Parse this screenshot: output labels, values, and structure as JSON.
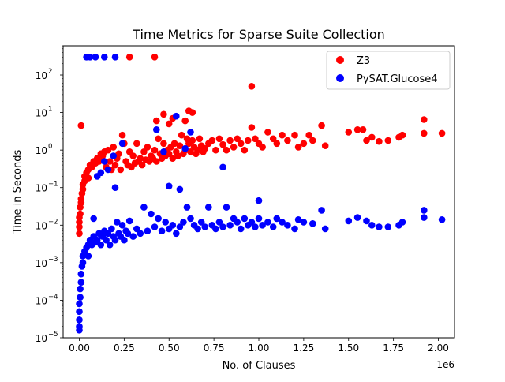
{
  "chart_data": {
    "type": "scatter",
    "title": "Time Metrics for Sparse Suite Collection",
    "xlabel": "No. of Clauses",
    "ylabel": "Time in Seconds",
    "x_offset_label": "1e6",
    "xscale": "linear",
    "yscale": "log",
    "xlim": [
      -0.09,
      2.09
    ],
    "ylim": [
      1e-05,
      600
    ],
    "x_unit_multiplier": 1000000,
    "x_ticks": [
      0.0,
      0.25,
      0.5,
      0.75,
      1.0,
      1.25,
      1.5,
      1.75,
      2.0
    ],
    "x_tick_labels": [
      "0.00",
      "0.25",
      "0.50",
      "0.75",
      "1.00",
      "1.25",
      "1.50",
      "1.75",
      "2.00"
    ],
    "y_ticks": [
      1e-05,
      0.0001,
      0.001,
      0.01,
      0.1,
      1,
      10,
      100
    ],
    "y_tick_labels": [
      "10",
      "10",
      "10",
      "10",
      "10",
      "10",
      "10",
      "10"
    ],
    "y_tick_exponents": [
      "−5",
      "−4",
      "−3",
      "−2",
      "−1",
      "0",
      "1",
      "2"
    ],
    "grid": false,
    "legend_position": "top-right",
    "series": [
      {
        "name": "Z3",
        "color": "#ff0000",
        "points": [
          [
            0.01,
            4.5
          ],
          [
            0.28,
            300
          ],
          [
            0.42,
            300
          ],
          [
            0.96,
            50
          ],
          [
            0.43,
            6
          ],
          [
            0.47,
            9
          ],
          [
            0.5,
            5
          ],
          [
            0.52,
            7
          ],
          [
            0.59,
            6
          ],
          [
            0.61,
            11
          ],
          [
            0.63,
            10
          ],
          [
            0.0,
            0.006
          ],
          [
            0.0,
            0.009
          ],
          [
            0.0,
            0.012
          ],
          [
            0.0,
            0.016
          ],
          [
            0.005,
            0.02
          ],
          [
            0.005,
            0.03
          ],
          [
            0.01,
            0.04
          ],
          [
            0.01,
            0.05
          ],
          [
            0.015,
            0.07
          ],
          [
            0.02,
            0.09
          ],
          [
            0.02,
            0.12
          ],
          [
            0.03,
            0.15
          ],
          [
            0.03,
            0.2
          ],
          [
            0.04,
            0.25
          ],
          [
            0.05,
            0.3
          ],
          [
            0.05,
            0.18
          ],
          [
            0.06,
            0.4
          ],
          [
            0.07,
            0.35
          ],
          [
            0.08,
            0.5
          ],
          [
            0.09,
            0.45
          ],
          [
            0.1,
            0.6
          ],
          [
            0.11,
            0.5
          ],
          [
            0.12,
            0.8
          ],
          [
            0.13,
            0.7
          ],
          [
            0.14,
            0.9
          ],
          [
            0.15,
            0.35
          ],
          [
            0.16,
            1.0
          ],
          [
            0.17,
            0.5
          ],
          [
            0.18,
            0.3
          ],
          [
            0.19,
            1.2
          ],
          [
            0.2,
            0.4
          ],
          [
            0.21,
            0.6
          ],
          [
            0.22,
            0.8
          ],
          [
            0.23,
            0.3
          ],
          [
            0.24,
            2.5
          ],
          [
            0.25,
            1.5
          ],
          [
            0.26,
            0.5
          ],
          [
            0.27,
            0.4
          ],
          [
            0.28,
            0.9
          ],
          [
            0.29,
            0.35
          ],
          [
            0.3,
            0.7
          ],
          [
            0.31,
            0.45
          ],
          [
            0.32,
            1.5
          ],
          [
            0.33,
            0.5
          ],
          [
            0.34,
            0.6
          ],
          [
            0.35,
            0.4
          ],
          [
            0.36,
            0.9
          ],
          [
            0.37,
            0.55
          ],
          [
            0.38,
            1.2
          ],
          [
            0.39,
            0.5
          ],
          [
            0.4,
            0.7
          ],
          [
            0.41,
            0.6
          ],
          [
            0.42,
            1.0
          ],
          [
            0.43,
            0.5
          ],
          [
            0.44,
            2.0
          ],
          [
            0.45,
            0.8
          ],
          [
            0.46,
            0.6
          ],
          [
            0.47,
            1.5
          ],
          [
            0.48,
            0.7
          ],
          [
            0.49,
            1.0
          ],
          [
            0.5,
            0.8
          ],
          [
            0.51,
            1.2
          ],
          [
            0.52,
            0.6
          ],
          [
            0.53,
            1.5
          ],
          [
            0.54,
            0.9
          ],
          [
            0.55,
            0.7
          ],
          [
            0.56,
            1.3
          ],
          [
            0.57,
            2.5
          ],
          [
            0.58,
            0.8
          ],
          [
            0.59,
            1.0
          ],
          [
            0.6,
            2.0
          ],
          [
            0.61,
            1.5
          ],
          [
            0.62,
            0.9
          ],
          [
            0.63,
            1.8
          ],
          [
            0.64,
            1.2
          ],
          [
            0.65,
            0.8
          ],
          [
            0.66,
            1.0
          ],
          [
            0.67,
            2.0
          ],
          [
            0.68,
            1.3
          ],
          [
            0.69,
            0.9
          ],
          [
            0.7,
            1.1
          ],
          [
            0.72,
            1.5
          ],
          [
            0.74,
            1.8
          ],
          [
            0.76,
            1.0
          ],
          [
            0.78,
            2.0
          ],
          [
            0.8,
            1.4
          ],
          [
            0.82,
            1.0
          ],
          [
            0.84,
            1.8
          ],
          [
            0.86,
            1.2
          ],
          [
            0.88,
            2.0
          ],
          [
            0.9,
            1.5
          ],
          [
            0.92,
            1.0
          ],
          [
            0.94,
            1.8
          ],
          [
            0.96,
            4.0
          ],
          [
            0.98,
            2.0
          ],
          [
            1.0,
            1.5
          ],
          [
            1.02,
            1.2
          ],
          [
            1.05,
            3.0
          ],
          [
            1.08,
            2.0
          ],
          [
            1.1,
            1.5
          ],
          [
            1.13,
            2.5
          ],
          [
            1.16,
            1.8
          ],
          [
            1.2,
            2.5
          ],
          [
            1.22,
            1.2
          ],
          [
            1.25,
            1.5
          ],
          [
            1.28,
            2.5
          ],
          [
            1.3,
            1.8
          ],
          [
            1.35,
            4.5
          ],
          [
            1.37,
            1.3
          ],
          [
            1.5,
            3.0
          ],
          [
            1.55,
            3.5
          ],
          [
            1.58,
            3.5
          ],
          [
            1.6,
            1.8
          ],
          [
            1.63,
            2.2
          ],
          [
            1.67,
            1.7
          ],
          [
            1.72,
            1.8
          ],
          [
            1.78,
            2.2
          ],
          [
            1.8,
            2.5
          ],
          [
            1.92,
            6.5
          ],
          [
            1.92,
            2.8
          ],
          [
            2.02,
            2.8
          ]
        ]
      },
      {
        "name": "PySAT.Glucose4",
        "color": "#0000ff",
        "points": [
          [
            0.04,
            300
          ],
          [
            0.06,
            300
          ],
          [
            0.09,
            300
          ],
          [
            0.14,
            300
          ],
          [
            0.2,
            300
          ],
          [
            0.43,
            3.5
          ],
          [
            0.54,
            8
          ],
          [
            0.62,
            3.0
          ],
          [
            0.59,
            1.1
          ],
          [
            0.47,
            0.9
          ],
          [
            0.24,
            1.5
          ],
          [
            0.19,
            0.7
          ],
          [
            0.14,
            0.5
          ],
          [
            0.16,
            0.3
          ],
          [
            0.12,
            0.25
          ],
          [
            0.1,
            0.2
          ],
          [
            0.2,
            0.1
          ],
          [
            0.5,
            0.11
          ],
          [
            0.8,
            0.35
          ],
          [
            0.56,
            0.09
          ],
          [
            1.0,
            0.045
          ],
          [
            0.0,
            1.6e-05
          ],
          [
            0.0,
            2e-05
          ],
          [
            0.0,
            3e-05
          ],
          [
            0.0,
            5e-05
          ],
          [
            0.0,
            8e-05
          ],
          [
            0.005,
            0.00012
          ],
          [
            0.005,
            0.0002
          ],
          [
            0.01,
            0.0003
          ],
          [
            0.01,
            0.0005
          ],
          [
            0.015,
            0.0008
          ],
          [
            0.02,
            0.001
          ],
          [
            0.02,
            0.0015
          ],
          [
            0.03,
            0.002
          ],
          [
            0.04,
            0.0025
          ],
          [
            0.05,
            0.003
          ],
          [
            0.05,
            0.0015
          ],
          [
            0.06,
            0.004
          ],
          [
            0.07,
            0.003
          ],
          [
            0.08,
            0.005
          ],
          [
            0.08,
            0.015
          ],
          [
            0.09,
            0.0035
          ],
          [
            0.1,
            0.004
          ],
          [
            0.11,
            0.006
          ],
          [
            0.12,
            0.003
          ],
          [
            0.13,
            0.005
          ],
          [
            0.14,
            0.007
          ],
          [
            0.15,
            0.004
          ],
          [
            0.16,
            0.006
          ],
          [
            0.17,
            0.003
          ],
          [
            0.18,
            0.008
          ],
          [
            0.19,
            0.005
          ],
          [
            0.2,
            0.004
          ],
          [
            0.21,
            0.012
          ],
          [
            0.22,
            0.006
          ],
          [
            0.23,
            0.005
          ],
          [
            0.24,
            0.01
          ],
          [
            0.25,
            0.004
          ],
          [
            0.26,
            0.007
          ],
          [
            0.27,
            0.006
          ],
          [
            0.28,
            0.013
          ],
          [
            0.3,
            0.005
          ],
          [
            0.32,
            0.008
          ],
          [
            0.34,
            0.006
          ],
          [
            0.36,
            0.03
          ],
          [
            0.38,
            0.007
          ],
          [
            0.4,
            0.02
          ],
          [
            0.42,
            0.009
          ],
          [
            0.44,
            0.015
          ],
          [
            0.46,
            0.007
          ],
          [
            0.48,
            0.012
          ],
          [
            0.5,
            0.008
          ],
          [
            0.52,
            0.01
          ],
          [
            0.54,
            0.006
          ],
          [
            0.56,
            0.009
          ],
          [
            0.58,
            0.012
          ],
          [
            0.6,
            0.03
          ],
          [
            0.62,
            0.015
          ],
          [
            0.64,
            0.01
          ],
          [
            0.66,
            0.008
          ],
          [
            0.68,
            0.012
          ],
          [
            0.7,
            0.009
          ],
          [
            0.72,
            0.03
          ],
          [
            0.74,
            0.01
          ],
          [
            0.76,
            0.008
          ],
          [
            0.78,
            0.012
          ],
          [
            0.8,
            0.009
          ],
          [
            0.82,
            0.03
          ],
          [
            0.84,
            0.01
          ],
          [
            0.86,
            0.015
          ],
          [
            0.88,
            0.012
          ],
          [
            0.9,
            0.008
          ],
          [
            0.92,
            0.015
          ],
          [
            0.94,
            0.01
          ],
          [
            0.96,
            0.012
          ],
          [
            0.98,
            0.009
          ],
          [
            1.0,
            0.015
          ],
          [
            1.02,
            0.01
          ],
          [
            1.05,
            0.012
          ],
          [
            1.08,
            0.009
          ],
          [
            1.1,
            0.015
          ],
          [
            1.13,
            0.012
          ],
          [
            1.16,
            0.01
          ],
          [
            1.2,
            0.008
          ],
          [
            1.22,
            0.014
          ],
          [
            1.25,
            0.012
          ],
          [
            1.3,
            0.011
          ],
          [
            1.35,
            0.025
          ],
          [
            1.37,
            0.008
          ],
          [
            1.5,
            0.013
          ],
          [
            1.55,
            0.016
          ],
          [
            1.6,
            0.013
          ],
          [
            1.63,
            0.01
          ],
          [
            1.67,
            0.009
          ],
          [
            1.72,
            0.009
          ],
          [
            1.78,
            0.01
          ],
          [
            1.8,
            0.012
          ],
          [
            1.92,
            0.016
          ],
          [
            1.92,
            0.025
          ],
          [
            2.02,
            0.014
          ]
        ]
      }
    ]
  }
}
